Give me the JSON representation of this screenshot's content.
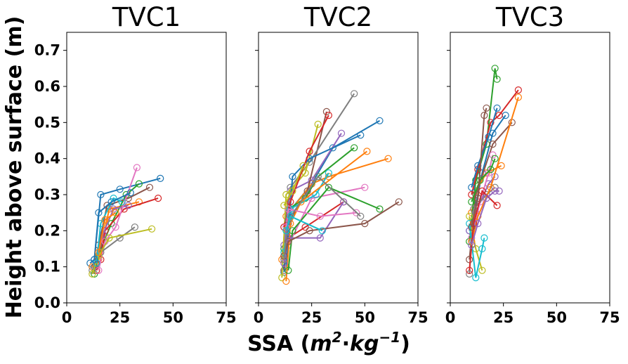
{
  "chart_data": {
    "type": "line",
    "ylabel": "Height above surface (m)",
    "xlabel_prefix": "SSA (",
    "xlabel_unit_m": "m",
    "xlabel_unit_m_exp": "2",
    "xlabel_unit_dot": "·",
    "xlabel_unit_kg": "kg",
    "xlabel_unit_kg_exp": "−1",
    "xlabel_suffix": ")",
    "xlim": [
      0,
      75
    ],
    "ylim": [
      0,
      0.75
    ],
    "xticks": [
      "0",
      "25",
      "50",
      "75"
    ],
    "xtick_values": [
      0,
      25,
      50,
      75
    ],
    "yticks": [
      "0.0",
      "0.1",
      "0.2",
      "0.3",
      "0.4",
      "0.5",
      "0.6",
      "0.7"
    ],
    "ytick_values": [
      0,
      0.1,
      0.2,
      0.3,
      0.4,
      0.5,
      0.6,
      0.7
    ],
    "colors": [
      "#1f77b4",
      "#ff7f0e",
      "#2ca02c",
      "#d62728",
      "#9467bd",
      "#8c564b",
      "#e377c2",
      "#7f7f7f",
      "#bcbd22",
      "#17becf"
    ],
    "panels": [
      {
        "title": "TVC1",
        "series": [
          {
            "values": [
              [
                11,
                0.11
              ],
              [
                13,
                0.12
              ],
              [
                16,
                0.3
              ],
              [
                25,
                0.315
              ],
              [
                44,
                0.345
              ]
            ]
          },
          {
            "values": [
              [
                12,
                0.1
              ],
              [
                15,
                0.12
              ],
              [
                20,
                0.26
              ],
              [
                34,
                0.28
              ]
            ]
          },
          {
            "values": [
              [
                13,
                0.08
              ],
              [
                16,
                0.15
              ],
              [
                21,
                0.22
              ],
              [
                28,
                0.3
              ],
              [
                34,
                0.33
              ]
            ]
          },
          {
            "values": [
              [
                14,
                0.09
              ],
              [
                16,
                0.12
              ],
              [
                18,
                0.2
              ],
              [
                27,
                0.26
              ],
              [
                43,
                0.29
              ]
            ]
          },
          {
            "values": [
              [
                14,
                0.11
              ],
              [
                17,
                0.19
              ],
              [
                22,
                0.26
              ],
              [
                29,
                0.27
              ]
            ]
          },
          {
            "values": [
              [
                13,
                0.1
              ],
              [
                15,
                0.16
              ],
              [
                19,
                0.27
              ],
              [
                29,
                0.29
              ],
              [
                39,
                0.32
              ]
            ]
          },
          {
            "values": [
              [
                15,
                0.09
              ],
              [
                18,
                0.17
              ],
              [
                23,
                0.21
              ],
              [
                33,
                0.375
              ]
            ]
          },
          {
            "values": [
              [
                12,
                0.09
              ],
              [
                16,
                0.14
              ],
              [
                25,
                0.18
              ],
              [
                32,
                0.21
              ]
            ]
          },
          {
            "values": [
              [
                12,
                0.08
              ],
              [
                15,
                0.13
              ],
              [
                20,
                0.18
              ],
              [
                40,
                0.205
              ]
            ]
          },
          {
            "values": [
              [
                14,
                0.11
              ],
              [
                16,
                0.22
              ],
              [
                22,
                0.29
              ],
              [
                26,
                0.28
              ]
            ]
          },
          {
            "values": [
              [
                13,
                0.12
              ],
              [
                15,
                0.25
              ],
              [
                21,
                0.28
              ],
              [
                30,
                0.305
              ]
            ]
          },
          {
            "values": [
              [
                15,
                0.14
              ],
              [
                18,
                0.23
              ],
              [
                23,
                0.25
              ]
            ]
          }
        ]
      },
      {
        "title": "TVC2",
        "series": [
          {
            "values": [
              [
                12,
                0.085
              ],
              [
                14,
                0.25
              ],
              [
                25,
                0.33
              ],
              [
                35,
                0.43
              ],
              [
                57,
                0.505
              ]
            ]
          },
          {
            "values": [
              [
                11,
                0.12
              ],
              [
                13,
                0.24
              ],
              [
                25,
                0.33
              ],
              [
                33,
                0.35
              ],
              [
                61,
                0.4
              ]
            ]
          },
          {
            "values": [
              [
                12,
                0.15
              ],
              [
                14,
                0.26
              ],
              [
                22,
                0.29
              ],
              [
                28,
                0.35
              ],
              [
                45,
                0.43
              ]
            ]
          },
          {
            "values": [
              [
                12,
                0.13
              ],
              [
                14,
                0.18
              ],
              [
                22,
                0.21
              ],
              [
                40,
                0.28
              ]
            ]
          },
          {
            "values": [
              [
                12,
                0.16
              ],
              [
                15,
                0.31
              ],
              [
                25,
                0.34
              ],
              [
                39,
                0.47
              ]
            ]
          },
          {
            "values": [
              [
                12,
                0.09
              ],
              [
                14,
                0.22
              ],
              [
                23,
                0.31
              ],
              [
                32,
                0.53
              ]
            ]
          },
          {
            "values": [
              [
                12,
                0.12
              ],
              [
                14,
                0.16
              ],
              [
                25,
                0.29
              ],
              [
                50,
                0.32
              ]
            ]
          },
          {
            "values": [
              [
                12,
                0.21
              ],
              [
                15,
                0.32
              ],
              [
                24,
                0.39
              ],
              [
                45,
                0.58
              ]
            ]
          },
          {
            "values": [
              [
                11,
                0.07
              ],
              [
                13,
                0.3
              ],
              [
                22,
                0.36
              ],
              [
                28,
                0.495
              ]
            ]
          },
          {
            "values": [
              [
                12,
                0.14
              ],
              [
                15,
                0.26
              ],
              [
                27,
                0.3
              ],
              [
                33,
                0.36
              ]
            ]
          },
          {
            "values": [
              [
                13,
                0.1
              ],
              [
                16,
                0.35
              ],
              [
                24,
                0.4
              ],
              [
                48,
                0.465
              ]
            ]
          },
          {
            "values": [
              [
                13,
                0.06
              ],
              [
                15,
                0.22
              ],
              [
                20,
                0.28
              ],
              [
                51,
                0.42
              ]
            ]
          },
          {
            "values": [
              [
                14,
                0.09
              ],
              [
                16,
                0.2
              ],
              [
                33,
                0.32
              ],
              [
                57,
                0.26
              ]
            ]
          },
          {
            "values": [
              [
                12,
                0.21
              ],
              [
                15,
                0.28
              ],
              [
                24,
                0.42
              ],
              [
                33,
                0.52
              ]
            ]
          },
          {
            "values": [
              [
                12,
                0.11
              ],
              [
                14,
                0.18
              ],
              [
                29,
                0.18
              ],
              [
                40,
                0.28
              ]
            ]
          },
          {
            "values": [
              [
                12,
                0.13
              ],
              [
                14,
                0.17
              ],
              [
                24,
                0.2
              ],
              [
                50,
                0.22
              ],
              [
                66,
                0.28
              ]
            ]
          },
          {
            "values": [
              [
                13,
                0.21
              ],
              [
                14,
                0.26
              ],
              [
                29,
                0.24
              ],
              [
                46,
                0.25
              ]
            ]
          },
          {
            "values": [
              [
                12,
                0.12
              ],
              [
                14,
                0.23
              ],
              [
                28,
                0.35
              ],
              [
                48,
                0.24
              ]
            ]
          },
          {
            "values": [
              [
                12,
                0.27
              ],
              [
                16,
                0.31
              ],
              [
                21,
                0.38
              ]
            ]
          },
          {
            "values": [
              [
                13,
                0.2
              ],
              [
                15,
                0.24
              ],
              [
                30,
                0.2
              ]
            ]
          }
        ]
      },
      {
        "title": "TVC3",
        "series": [
          {
            "values": [
              [
                9,
                0.2
              ],
              [
                12,
                0.27
              ],
              [
                15,
                0.36
              ],
              [
                20,
                0.47
              ],
              [
                26,
                0.52
              ]
            ]
          },
          {
            "values": [
              [
                10,
                0.25
              ],
              [
                12,
                0.31
              ],
              [
                17,
                0.36
              ],
              [
                24,
                0.38
              ]
            ]
          },
          {
            "values": [
              [
                9,
                0.17
              ],
              [
                12,
                0.34
              ],
              [
                17,
                0.44
              ],
              [
                21,
                0.65
              ],
              [
                22,
                0.62
              ]
            ]
          },
          {
            "values": [
              [
                10,
                0.3
              ],
              [
                13,
                0.37
              ],
              [
                19,
                0.5
              ],
              [
                23,
                0.52
              ],
              [
                32,
                0.59
              ]
            ]
          },
          {
            "values": [
              [
                9,
                0.2
              ],
              [
                12,
                0.25
              ],
              [
                18,
                0.33
              ],
              [
                21,
                0.35
              ]
            ]
          },
          {
            "values": [
              [
                9,
                0.12
              ],
              [
                12,
                0.3
              ],
              [
                20,
                0.44
              ],
              [
                29,
                0.5
              ]
            ]
          },
          {
            "values": [
              [
                10,
                0.18
              ],
              [
                14,
                0.28
              ],
              [
                18,
                0.36
              ],
              [
                20,
                0.41
              ]
            ]
          },
          {
            "values": [
              [
                9,
                0.08
              ],
              [
                11,
                0.26
              ],
              [
                17,
                0.3
              ],
              [
                21,
                0.32
              ]
            ]
          },
          {
            "values": [
              [
                9,
                0.24
              ],
              [
                12,
                0.15
              ],
              [
                15,
                0.09
              ]
            ]
          },
          {
            "values": [
              [
                9,
                0.22
              ],
              [
                12,
                0.07
              ],
              [
                15,
                0.15
              ],
              [
                16,
                0.18
              ]
            ]
          },
          {
            "values": [
              [
                10,
                0.32
              ],
              [
                13,
                0.38
              ],
              [
                18,
                0.46
              ],
              [
                22,
                0.54
              ]
            ]
          },
          {
            "values": [
              [
                10,
                0.17
              ],
              [
                13,
                0.24
              ],
              [
                19,
                0.32
              ],
              [
                32,
                0.57
              ]
            ]
          },
          {
            "values": [
              [
                10,
                0.28
              ],
              [
                14,
                0.34
              ],
              [
                19,
                0.37
              ],
              [
                21,
                0.4
              ]
            ]
          },
          {
            "values": [
              [
                9,
                0.09
              ],
              [
                11,
                0.22
              ],
              [
                15,
                0.31
              ],
              [
                22,
                0.27
              ]
            ]
          },
          {
            "values": [
              [
                10,
                0.16
              ],
              [
                13,
                0.22
              ],
              [
                17,
                0.29
              ],
              [
                21,
                0.31
              ],
              [
                23,
                0.31
              ]
            ]
          },
          {
            "values": [
              [
                10,
                0.21
              ],
              [
                13,
                0.29
              ],
              [
                16,
                0.52
              ],
              [
                17,
                0.54
              ]
            ]
          }
        ]
      }
    ]
  }
}
